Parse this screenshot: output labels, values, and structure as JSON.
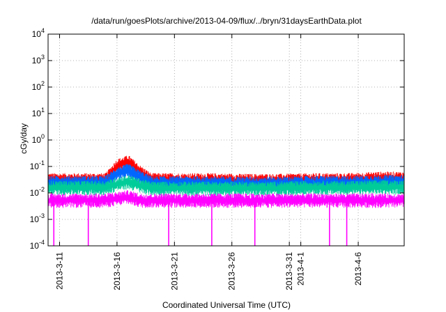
{
  "chart_data": {
    "type": "line",
    "title": "/data/run/goesPlots/archive/2013-04-09/flux/../bryn/31daysEarthData.plot",
    "xlabel": "Coordinated Universal Time (UTC)",
    "ylabel": "cGy/day",
    "yscale": "log",
    "ylim": [
      0.0001,
      10000
    ],
    "xlim": [
      "2013-03-10",
      "2013-04-10"
    ],
    "grid": true,
    "x_ticks": [
      "2013-3-11",
      "2013-3-16",
      "2013-3-21",
      "2013-3-26",
      "2013-3-31",
      "2013-4-1",
      "2013-4-6"
    ],
    "y_ticks": [
      {
        "base": "10",
        "exp": "-4",
        "value": 0.0001
      },
      {
        "base": "10",
        "exp": "-3",
        "value": 0.001
      },
      {
        "base": "10",
        "exp": "-2",
        "value": 0.01
      },
      {
        "base": "10",
        "exp": "-1",
        "value": 0.1
      },
      {
        "base": "10",
        "exp": "0",
        "value": 1
      },
      {
        "base": "10",
        "exp": "1",
        "value": 10
      },
      {
        "base": "10",
        "exp": "2",
        "value": 100
      },
      {
        "base": "10",
        "exp": "3",
        "value": 1000
      },
      {
        "base": "10",
        "exp": "4",
        "value": 10000
      }
    ],
    "series": [
      {
        "color": "#ff0000",
        "x": [
          "2013-03-10",
          "2013-03-12",
          "2013-03-14",
          "2013-03-15",
          "2013-03-16",
          "2013-03-17",
          "2013-03-18",
          "2013-03-19",
          "2013-03-21",
          "2013-03-24",
          "2013-03-27",
          "2013-03-30",
          "2013-04-02",
          "2013-04-05",
          "2013-04-08",
          "2013-04-10"
        ],
        "values": [
          0.035,
          0.035,
          0.035,
          0.035,
          0.12,
          0.17,
          0.07,
          0.035,
          0.035,
          0.035,
          0.033,
          0.033,
          0.035,
          0.035,
          0.04,
          0.04
        ]
      },
      {
        "color": "#0066ff",
        "x": [
          "2013-03-10",
          "2013-03-12",
          "2013-03-14",
          "2013-03-15",
          "2013-03-16",
          "2013-03-17",
          "2013-03-18",
          "2013-03-19",
          "2013-03-21",
          "2013-03-24",
          "2013-03-27",
          "2013-03-30",
          "2013-04-02",
          "2013-04-05",
          "2013-04-08",
          "2013-04-10"
        ],
        "values": [
          0.028,
          0.028,
          0.028,
          0.028,
          0.06,
          0.08,
          0.045,
          0.027,
          0.027,
          0.027,
          0.026,
          0.026,
          0.028,
          0.028,
          0.03,
          0.03
        ]
      },
      {
        "color": "#00cc99",
        "x": [
          "2013-03-10",
          "2013-03-12",
          "2013-03-14",
          "2013-03-15",
          "2013-03-16",
          "2013-03-17",
          "2013-03-18",
          "2013-03-19",
          "2013-03-21",
          "2013-03-24",
          "2013-03-27",
          "2013-03-30",
          "2013-04-02",
          "2013-04-05",
          "2013-04-08",
          "2013-04-10"
        ],
        "values": [
          0.018,
          0.018,
          0.018,
          0.018,
          0.025,
          0.03,
          0.022,
          0.017,
          0.017,
          0.017,
          0.017,
          0.017,
          0.018,
          0.018,
          0.019,
          0.019
        ]
      },
      {
        "color": "#ff00ff",
        "x": [
          "2013-03-10",
          "2013-03-12",
          "2013-03-14",
          "2013-03-15",
          "2013-03-16",
          "2013-03-17",
          "2013-03-18",
          "2013-03-19",
          "2013-03-21",
          "2013-03-24",
          "2013-03-27",
          "2013-03-30",
          "2013-04-02",
          "2013-04-05",
          "2013-04-08",
          "2013-04-10"
        ],
        "values": [
          0.006,
          0.006,
          0.006,
          0.006,
          0.007,
          0.008,
          0.006,
          0.006,
          0.006,
          0.006,
          0.006,
          0.006,
          0.006,
          0.006,
          0.006,
          0.006
        ],
        "dropouts": [
          "2013-03-10 12:00",
          "2013-03-13 12:00",
          "2013-03-20 12:00",
          "2013-03-24 06:00",
          "2013-03-28 00:00",
          "2013-04-03 12:00",
          "2013-04-05 00:00"
        ],
        "dropout_value": 0.0001
      }
    ]
  }
}
